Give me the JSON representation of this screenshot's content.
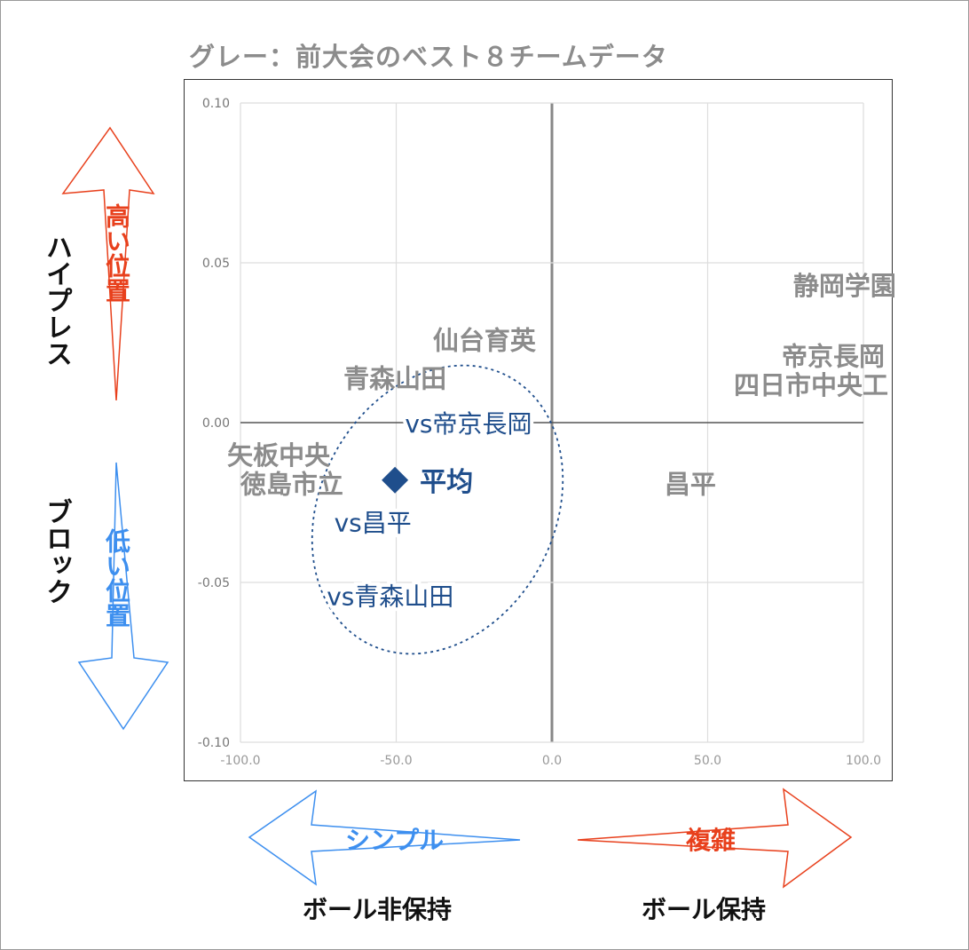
{
  "chart_data": {
    "type": "scatter",
    "title": "グレー：前大会のベスト８チームデータ",
    "xlim": [
      -100,
      100
    ],
    "ylim": [
      -0.1,
      0.1
    ],
    "xticks": [
      "-100.0",
      "-50.0",
      "0.0",
      "50.0",
      "100.0"
    ],
    "xtick_values": [
      -100,
      -50,
      0,
      50,
      100
    ],
    "yticks": [
      "0.10",
      "0.05",
      "0.00",
      "-0.05",
      "-0.10"
    ],
    "ytick_values": [
      0.1,
      0.05,
      0,
      -0.05,
      -0.1
    ],
    "grid": true,
    "gray_labels": [
      {
        "text": "静岡学園",
        "x": 94,
        "y": 0.043
      },
      {
        "text": "帝京長岡",
        "x": 90.3,
        "y": 0.021
      },
      {
        "text": "四日市中央工",
        "x": 83.2,
        "y": 0.012
      },
      {
        "text": "仙台育英",
        "x": -21.7,
        "y": 0.026
      },
      {
        "text": "青森山田",
        "x": -50.4,
        "y": 0.014
      },
      {
        "text": "矢板中央",
        "x": -87.7,
        "y": -0.01
      },
      {
        "text": "徳島市立",
        "x": -83.5,
        "y": -0.019
      },
      {
        "text": "昌平",
        "x": 44.4,
        "y": -0.019
      }
    ],
    "blue_labels": [
      {
        "text": "vs帝京長岡",
        "x": -26.8,
        "y": 0.0
      },
      {
        "text": "vs昌平",
        "x": -57.5,
        "y": -0.031
      },
      {
        "text": "vs青森山田",
        "x": -51.9,
        "y": -0.054
      }
    ],
    "average": {
      "text": "平均",
      "x": -50.4,
      "y": -0.018
    },
    "colors": {
      "gray": "#8c8c8c",
      "blue": "#1f4e8c",
      "red": "#e8401c",
      "lightblue": "#3d8fef"
    }
  },
  "axes_annotations": {
    "y_top": "ハイプレス",
    "y_top_sub": "高い位置",
    "y_bottom": "ブロック",
    "y_bottom_sub": "低い位置",
    "x_left": "ボール非保持",
    "x_left_sub": "シンプル",
    "x_right": "ボール保持",
    "x_right_sub": "複雑"
  }
}
